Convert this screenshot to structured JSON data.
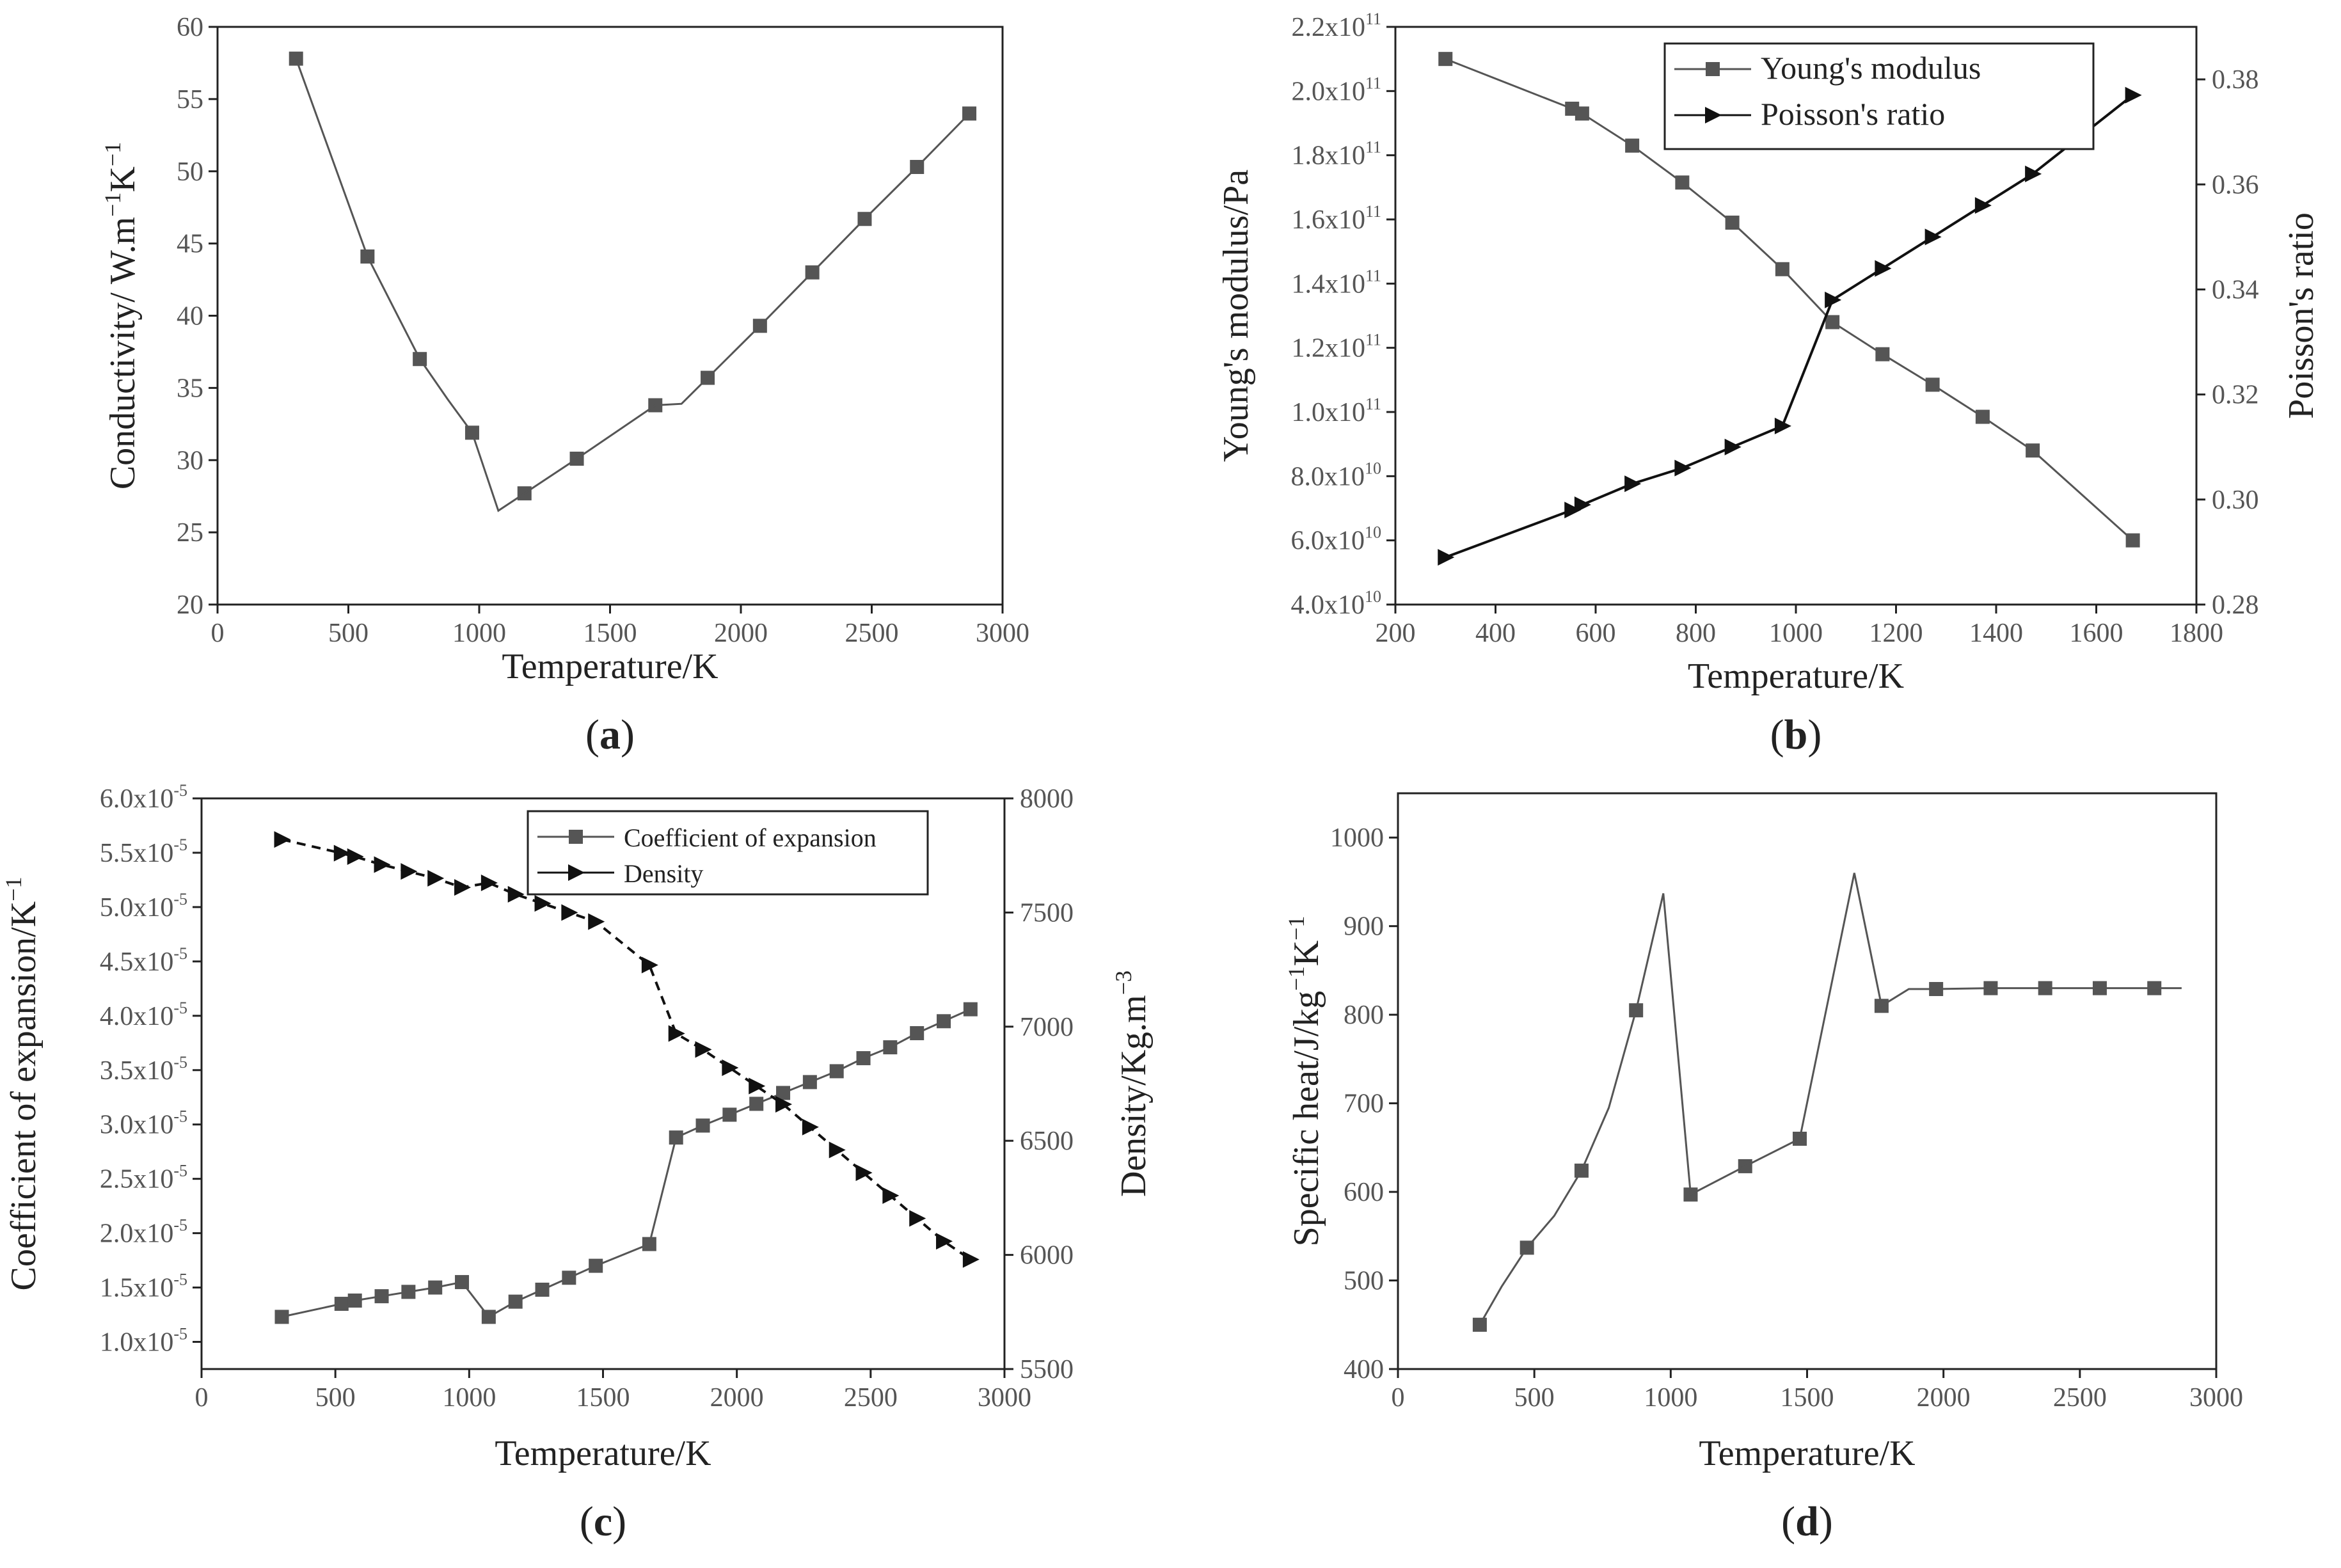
{
  "colors": {
    "series_gray": "#555555",
    "series_black": "#111111",
    "axis": "#222222"
  },
  "charts": [
    {
      "panel": "(a)",
      "chart_data": {
        "type": "line",
        "xlabel": "Temperature/K",
        "ylabel": "Conductivity/ W.m⁻¹K⁻¹",
        "xlim": [
          0,
          3000
        ],
        "ylim": [
          20,
          60
        ],
        "xticks": [
          0,
          500,
          1000,
          1500,
          2000,
          2500,
          3000
        ],
        "yticks": [
          20,
          25,
          30,
          35,
          40,
          45,
          50,
          55,
          60
        ],
        "series": [
          {
            "name": "Conductivity",
            "axis": "left",
            "marker": "square",
            "color": "#555555",
            "x": [
              300,
              573,
              773,
              973,
              1173,
              1373,
              1673,
              1873,
              2073,
              2273,
              2473,
              2673,
              2873
            ],
            "y": [
              57.8,
              44.1,
              37.0,
              31.9,
              27.7,
              30.1,
              33.8,
              35.7,
              39.3,
              43.0,
              46.7,
              50.3,
              54.0
            ]
          },
          {
            "name": "Conductivity line",
            "axis": "left",
            "marker": "none",
            "color": "#555555",
            "x": [
              300,
              573,
              680,
              773,
              880,
              973,
              1073,
              1173,
              1373,
              1673,
              1773,
              1873,
              2073,
              2273,
              2473,
              2673,
              2873
            ],
            "y": [
              57.8,
              44.1,
              40.3,
              37.0,
              34.2,
              31.9,
              26.5,
              27.7,
              30.1,
              33.8,
              33.9,
              35.7,
              39.3,
              43.0,
              46.7,
              50.3,
              54.0
            ]
          }
        ]
      }
    },
    {
      "panel": "(b)",
      "chart_data": {
        "type": "line",
        "xlabel": "Temperature/K",
        "ylabel": "Young's modulus/Pa",
        "y2label": "Poisson's ratio",
        "xlim": [
          200,
          1800
        ],
        "ylim": [
          40000000000.0,
          220000000000.0
        ],
        "y2lim": [
          0.28,
          0.39
        ],
        "xticks": [
          200,
          400,
          600,
          800,
          1000,
          1200,
          1400,
          1600,
          1800
        ],
        "yticks": [
          40000000000.0,
          60000000000.0,
          80000000000.0,
          100000000000.0,
          120000000000.0,
          140000000000.0,
          160000000000.0,
          180000000000.0,
          200000000000.0,
          220000000000.0
        ],
        "ytick_mantissa": [
          "4.0x10",
          "6.0x10",
          "8.0x10",
          "1.0x10",
          "1.2x10",
          "1.4x10",
          "1.6x10",
          "1.8x10",
          "2.0x10",
          "2.2x10"
        ],
        "ytick_exp": [
          "10",
          "10",
          "10",
          "11",
          "11",
          "11",
          "11",
          "11",
          "11",
          "11"
        ],
        "y2ticks": [
          0.28,
          0.3,
          0.32,
          0.34,
          0.36,
          0.38
        ],
        "legend": [
          "Young's modulus",
          "Poisson's ratio"
        ],
        "series": [
          {
            "name": "Young's modulus",
            "axis": "left",
            "marker": "square",
            "color": "#555555",
            "x": [
              300,
              553,
              573,
              673,
              773,
              873,
              973,
              1073,
              1173,
              1273,
              1373,
              1473,
              1673
            ],
            "y": [
              210000000000.0,
              194500000000.0,
              193000000000.0,
              183000000000.0,
              171500000000.0,
              159000000000.0,
              144500000000.0,
              128000000000.0,
              118000000000.0,
              108500000000.0,
              98500000000.0,
              88000000000.0,
              60000000000.0
            ]
          },
          {
            "name": "Poisson's ratio",
            "axis": "right",
            "marker": "triangle",
            "color": "#111111",
            "x": [
              300,
              553,
              573,
              673,
              773,
              873,
              973,
              1073,
              1173,
              1273,
              1373,
              1473,
              1673
            ],
            "y": [
              0.289,
              0.298,
              0.299,
              0.303,
              0.306,
              0.31,
              0.314,
              0.338,
              0.344,
              0.35,
              0.356,
              0.362,
              0.377
            ]
          }
        ]
      }
    },
    {
      "panel": "(c)",
      "chart_data": {
        "type": "line",
        "xlabel": "Temperature/K",
        "ylabel": "Coefficient of expansion/K⁻¹",
        "y2label": "Density/Kg.m⁻³",
        "xlim": [
          0,
          3000
        ],
        "ylim": [
          7.5e-06,
          6e-05
        ],
        "y2lim": [
          5500,
          8000
        ],
        "xticks": [
          0,
          500,
          1000,
          1500,
          2000,
          2500,
          3000
        ],
        "yticks": [
          1e-05,
          1.5e-05,
          2e-05,
          2.5e-05,
          3e-05,
          3.5e-05,
          4e-05,
          4.5e-05,
          5e-05,
          5.5e-05,
          6e-05
        ],
        "ytick_mantissa": [
          "1.0x10",
          "1.5x10",
          "2.0x10",
          "2.5x10",
          "3.0x10",
          "3.5x10",
          "4.0x10",
          "4.5x10",
          "5.0x10",
          "5.5x10",
          "6.0x10"
        ],
        "ytick_exp": [
          "-5",
          "-5",
          "-5",
          "-5",
          "-5",
          "-5",
          "-5",
          "-5",
          "-5",
          "-5",
          "-5"
        ],
        "y2ticks": [
          5500,
          6000,
          6500,
          7000,
          7500,
          8000
        ],
        "legend": [
          "Coefficient of expansion",
          "Density"
        ],
        "series": [
          {
            "name": "Coefficient of expansion",
            "axis": "left",
            "marker": "square",
            "color": "#555555",
            "x": [
              300,
              523,
              573,
              673,
              773,
              873,
              973,
              1073,
              1173,
              1273,
              1373,
              1473,
              1673,
              1773,
              1873,
              1973,
              2073,
              2173,
              2273,
              2373,
              2473,
              2573,
              2673,
              2773,
              2873
            ],
            "y": [
              1.23e-05,
              1.35e-05,
              1.38e-05,
              1.42e-05,
              1.46e-05,
              1.5e-05,
              1.55e-05,
              1.23e-05,
              1.37e-05,
              1.48e-05,
              1.59e-05,
              1.7e-05,
              1.9e-05,
              2.88e-05,
              2.99e-05,
              3.09e-05,
              3.19e-05,
              3.29e-05,
              3.39e-05,
              3.49e-05,
              3.61e-05,
              3.71e-05,
              3.84e-05,
              3.95e-05,
              4.06e-05
            ]
          },
          {
            "name": "Density",
            "axis": "right",
            "marker": "triangle",
            "color": "#111111",
            "x": [
              300,
              523,
              573,
              673,
              773,
              873,
              973,
              1073,
              1173,
              1273,
              1373,
              1473,
              1673,
              1773,
              1873,
              1973,
              2073,
              2173,
              2273,
              2373,
              2473,
              2573,
              2673,
              2773,
              2873
            ],
            "y": [
              7820,
              7760,
              7745,
              7710,
              7680,
              7650,
              7610,
              7630,
              7580,
              7540,
              7500,
              7460,
              7270,
              6970,
              6900,
              6820,
              6740,
              6660,
              6560,
              6460,
              6360,
              6260,
              6160,
              6060,
              5980
            ]
          }
        ]
      }
    },
    {
      "panel": "(d)",
      "chart_data": {
        "type": "line",
        "xlabel": "Temperature/K",
        "ylabel": "Specific heat/J/kg⁻¹K⁻¹",
        "xlim": [
          0,
          3000
        ],
        "ylim": [
          400,
          1050
        ],
        "xticks": [
          0,
          500,
          1000,
          1500,
          2000,
          2500,
          3000
        ],
        "yticks": [
          400,
          500,
          600,
          700,
          800,
          900,
          1000
        ],
        "series": [
          {
            "name": "Specific heat",
            "axis": "left",
            "marker": "square",
            "color": "#555555",
            "x": [
              300,
              473,
              673,
              873,
              1073,
              1273,
              1473,
              1773,
              1973,
              2173,
              2373,
              2573,
              2773
            ],
            "y": [
              450,
              537,
              624,
              805,
              597,
              629,
              660,
              810,
              829,
              830,
              830,
              830,
              830
            ]
          },
          {
            "name": "Specific heat line",
            "axis": "left",
            "marker": "none",
            "color": "#555555",
            "x": [
              300,
              380,
              473,
              573,
              673,
              773,
              873,
              973,
              1073,
              1273,
              1473,
              1673,
              1773,
              1873,
              1973,
              2173,
              2373,
              2573,
              2773,
              2873
            ],
            "y": [
              450,
              493,
              537,
              573,
              624,
              695,
              805,
              937,
              597,
              629,
              660,
              960,
              810,
              829,
              829,
              830,
              830,
              830,
              830,
              830
            ]
          }
        ]
      }
    }
  ]
}
